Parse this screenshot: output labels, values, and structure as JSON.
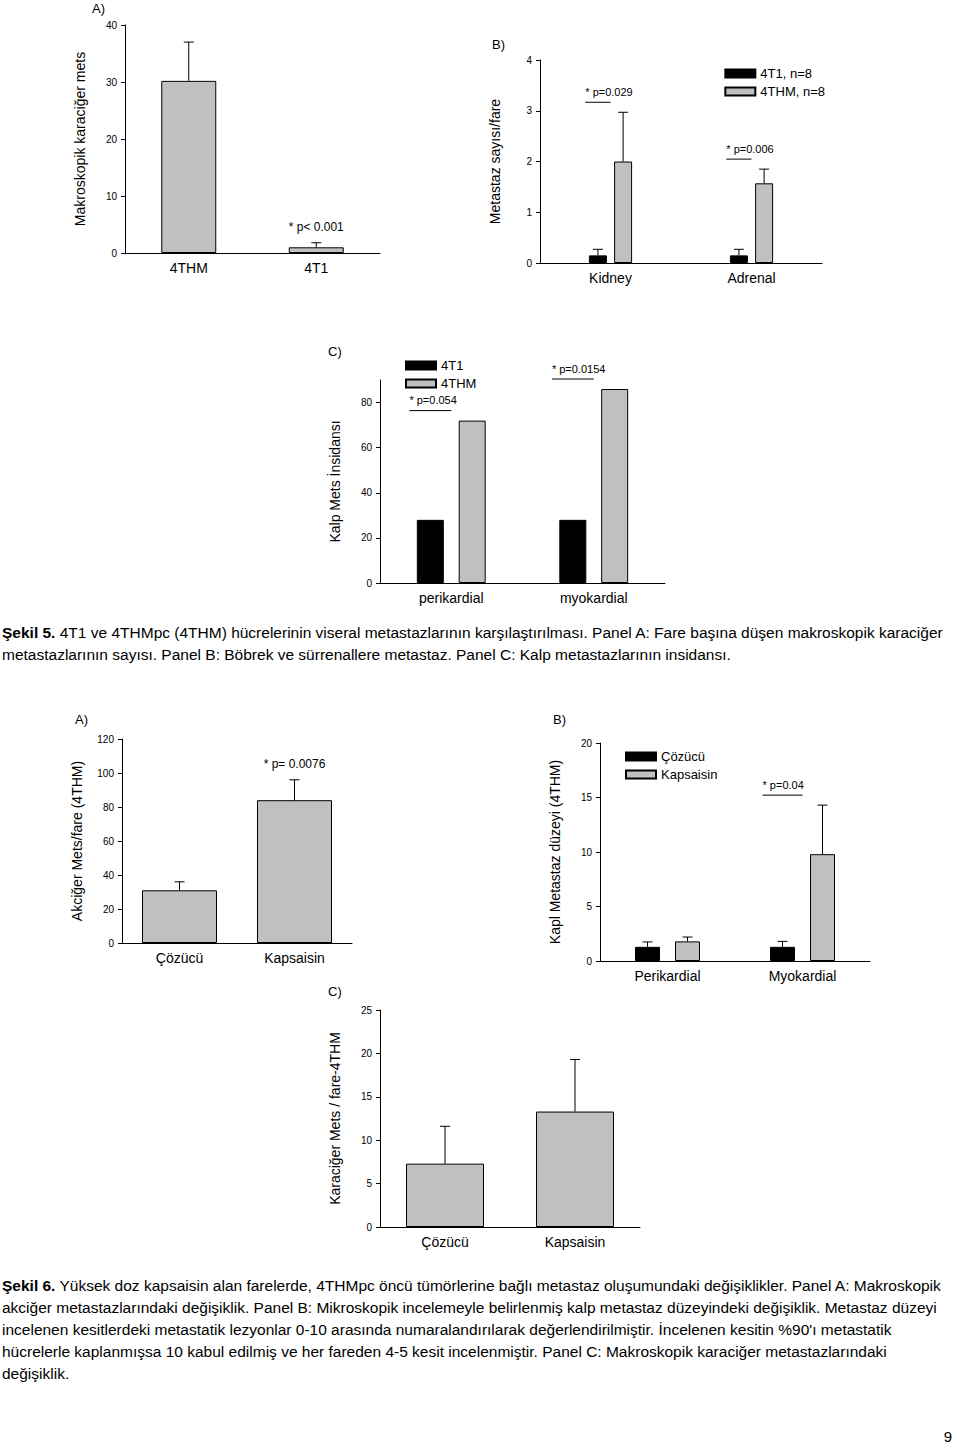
{
  "chart_data": [
    {
      "type": "bar",
      "panel": "A)",
      "y_label": "Makroskopik karaciğer mets",
      "categories": [
        "4THM",
        "4T1"
      ],
      "values": [
        30.2,
        1.0
      ],
      "errors": [
        6.8,
        0.8
      ],
      "color": "#c0c0c0",
      "ylim": [
        0,
        40
      ],
      "yticks": [
        0,
        10,
        20,
        30,
        40
      ],
      "annotations": [
        {
          "text": "* p< 0.001",
          "category": "4T1"
        }
      ]
    },
    {
      "type": "bar",
      "panel": "B)",
      "y_label": "Metastaz sayısı/fare",
      "categories": [
        "Kidney",
        "Adrenal"
      ],
      "series": [
        {
          "name": "4T1, n=8",
          "color": "#000000",
          "values": [
            0.15,
            0.15
          ],
          "errors": [
            0.12,
            0.12
          ]
        },
        {
          "name": "4THM, n=8",
          "color": "#c0c0c0",
          "values": [
            2.0,
            1.57
          ],
          "errors": [
            0.97,
            0.28
          ]
        }
      ],
      "ylim": [
        0,
        4
      ],
      "yticks": [
        0,
        1,
        2,
        3,
        4
      ],
      "legend": "upper right",
      "annotations": [
        {
          "text": "* p=0.029",
          "category": "Kidney"
        },
        {
          "text": "* p=0.006",
          "category": "Adrenal"
        }
      ]
    },
    {
      "type": "bar",
      "panel": "C)",
      "y_label": "Kalp Mets İnsidansı",
      "categories": [
        "perikardial",
        "myokardial"
      ],
      "series": [
        {
          "name": "4T1",
          "color": "#000000",
          "values": [
            28,
            28
          ]
        },
        {
          "name": "4THM",
          "color": "#c0c0c0",
          "values": [
            72,
            86
          ]
        }
      ],
      "ylim": [
        0,
        90
      ],
      "yticks": [
        0,
        20,
        40,
        60,
        80
      ],
      "legend": "upper left",
      "annotations": [
        {
          "text": "* p=0.054",
          "category": "perikardial"
        },
        {
          "text": "* p=0.0154",
          "category": "myokardial"
        }
      ]
    },
    {
      "type": "bar",
      "panel": "A)",
      "y_label": "Akciğer Mets/fare (4THM)",
      "categories": [
        "Çözücü",
        "Kapsaisin"
      ],
      "values": [
        31,
        84
      ],
      "errors": [
        5,
        12
      ],
      "color": "#c0c0c0",
      "ylim": [
        0,
        120
      ],
      "yticks": [
        0,
        20,
        40,
        60,
        80,
        100,
        120
      ],
      "annotations": [
        {
          "text": "* p= 0.0076",
          "category": "Kapsaisin"
        }
      ]
    },
    {
      "type": "bar",
      "panel": "B)",
      "y_label": "Kapl Metastaz düzeyi (4THM)",
      "categories": [
        "Perikardial",
        "Myokardial"
      ],
      "series": [
        {
          "name": "Çözücü",
          "color": "#000000",
          "values": [
            1.3,
            1.3
          ],
          "errors": [
            0.45,
            0.5
          ]
        },
        {
          "name": "Kapsaisin",
          "color": "#c0c0c0",
          "values": [
            1.8,
            9.8
          ],
          "errors": [
            0.4,
            4.5
          ]
        }
      ],
      "ylim": [
        0,
        20
      ],
      "yticks": [
        0,
        5,
        10,
        15,
        20
      ],
      "legend": "upper left",
      "annotations": [
        {
          "text": "* p=0.04",
          "category": "Myokardial"
        }
      ]
    },
    {
      "type": "bar",
      "panel": "C)",
      "y_label": "Karaciğer Mets / fare-4THM",
      "categories": [
        "Çözücü",
        "Kapsaisin"
      ],
      "values": [
        7.3,
        13.3
      ],
      "errors": [
        4.3,
        6.0
      ],
      "color": "#c0c0c0",
      "ylim": [
        0,
        25
      ],
      "yticks": [
        0,
        5,
        10,
        15,
        20,
        25
      ]
    }
  ],
  "captions": [
    {
      "label": "Şekil 5.",
      "text": "4T1 ve 4THMpc (4THM) hücrelerinin viseral metastazlarının karşılaştırılması. Panel A: Fare başına düşen makroskopik karaciğer metastazlarının sayısı. Panel B: Böbrek ve sürrenallere metastaz. Panel C: Kalp metastazlarının insidansı."
    },
    {
      "label": "Şekil 6.",
      "text": "Yüksek doz kapsaisin alan farelerde, 4THMpc öncü tümörlerine bağlı metastaz oluşumundaki değişiklikler. Panel A: Makroskopik akciğer metastazlarındaki değişiklik. Panel B: Mikroskopik incelemeyle belirlenmiş kalp metastaz düzeyindeki değişiklik. Metastaz düzeyi incelenen kesitlerdeki metastatik lezyonlar 0-10 arasında numaralandırılarak değerlendirilmiştir. İncelenen kesitin %90'ı metastatik hücrelerle kaplanmışsa 10 kabul edilmiş ve her fareden 4-5 kesit incelenmiştir. Panel C: Makroskopik karaciğer metastazlarındaki değişiklik."
    }
  ],
  "page_number": "9"
}
